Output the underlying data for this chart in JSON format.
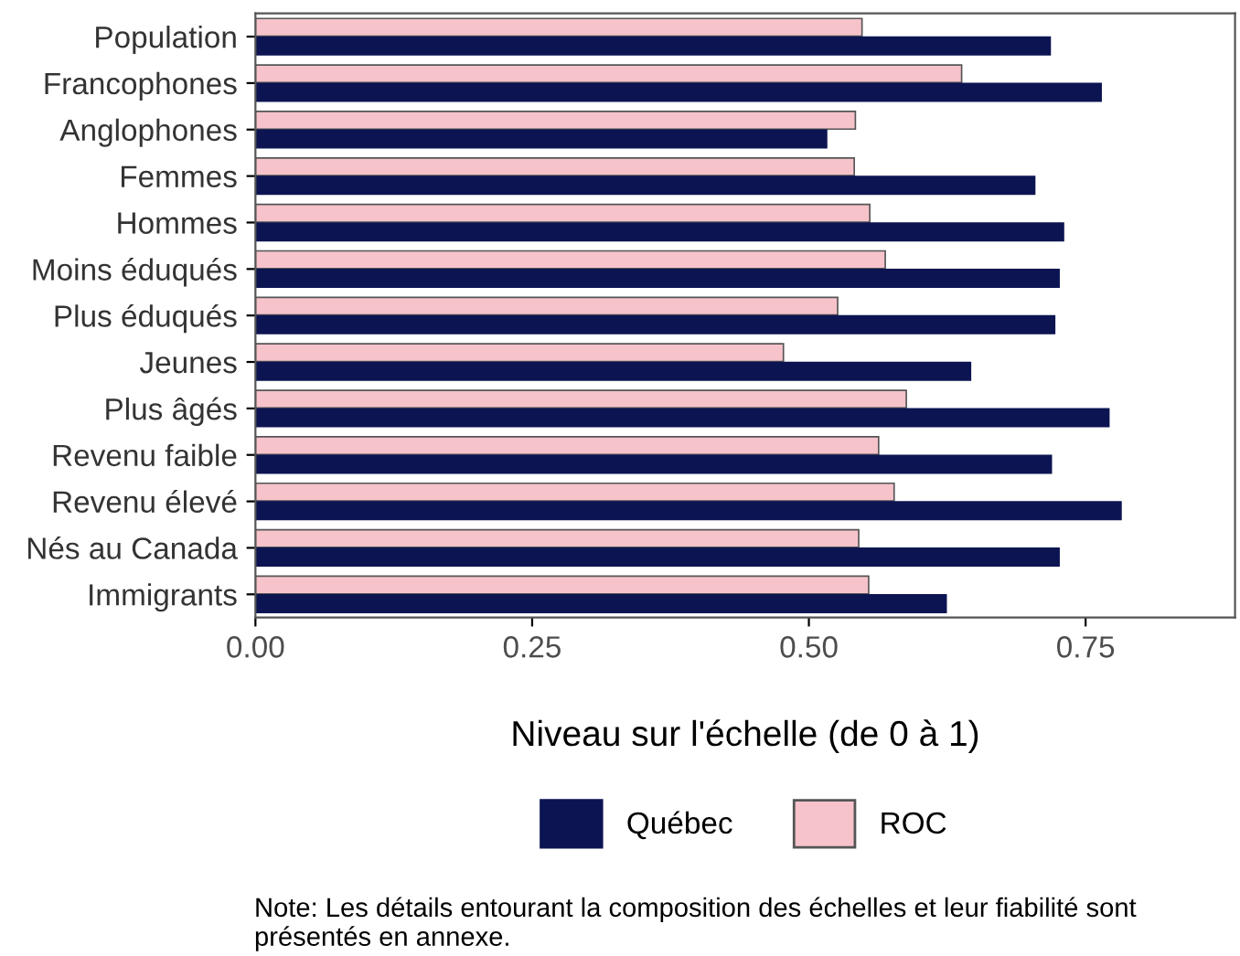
{
  "chart_data": {
    "type": "bar",
    "orientation": "horizontal",
    "categories": [
      "Population",
      "Francophones",
      "Anglophones",
      "Femmes",
      "Hommes",
      "Moins éduqués",
      "Plus éduqués",
      "Jeunes",
      "Plus âgés",
      "Revenu faible",
      "Revenu élevé",
      "Nés au Canada",
      "Immigrants"
    ],
    "series": [
      {
        "name": "ROC",
        "color": "#f6c3cb",
        "values": [
          0.548,
          0.638,
          0.542,
          0.541,
          0.555,
          0.569,
          0.526,
          0.477,
          0.588,
          0.563,
          0.577,
          0.545,
          0.554
        ]
      },
      {
        "name": "Québec",
        "color": "#0c1552",
        "values": [
          0.718,
          0.764,
          0.516,
          0.704,
          0.73,
          0.726,
          0.722,
          0.646,
          0.771,
          0.719,
          0.782,
          0.726,
          0.624
        ]
      }
    ],
    "xlim": [
      0,
      0.885
    ],
    "xticks": [
      {
        "value": 0,
        "label": "0.00"
      },
      {
        "value": 0.25,
        "label": "0.25"
      },
      {
        "value": 0.5,
        "label": "0.50"
      },
      {
        "value": 0.75,
        "label": "0.75"
      }
    ],
    "xlabel": "Niveau sur l'échelle (de 0 à 1)",
    "grid": false,
    "legend": "bottom",
    "annotations": [
      "Note: Les détails entourant la composition des échelles et leur fiabilité sont présentés en annexe."
    ]
  }
}
